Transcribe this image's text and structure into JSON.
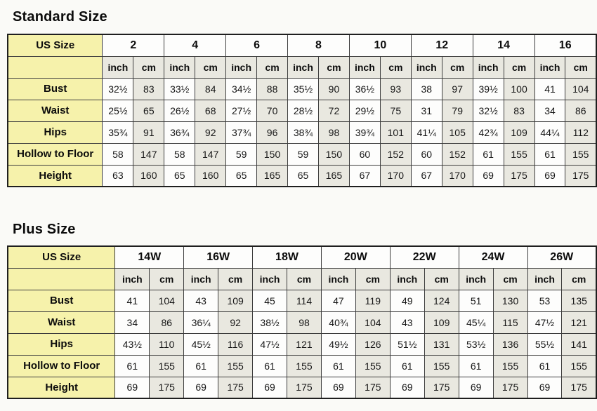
{
  "page": {
    "background": "#fafaf7"
  },
  "colors": {
    "label_column_yellow": "#f6f2ab",
    "unit_and_cm_cell_gray": "#e9e8e0",
    "white_cell": "#fdfdfc",
    "border": "#3d3d3d",
    "border_outer": "#1f1f1f",
    "text": "#111111"
  },
  "tables": [
    {
      "name": "standard-size",
      "title": "Standard Size",
      "corner_label": "US Size",
      "sizes": [
        "2",
        "4",
        "6",
        "8",
        "10",
        "12",
        "14",
        "16"
      ],
      "unit_labels": [
        "inch",
        "cm"
      ],
      "rows": [
        {
          "label": "Bust",
          "values": [
            "32½",
            "83",
            "33½",
            "84",
            "34½",
            "88",
            "35½",
            "90",
            "36½",
            "93",
            "38",
            "97",
            "39½",
            "100",
            "41",
            "104"
          ]
        },
        {
          "label": "Waist",
          "values": [
            "25½",
            "65",
            "26½",
            "68",
            "27½",
            "70",
            "28½",
            "72",
            "29½",
            "75",
            "31",
            "79",
            "32½",
            "83",
            "34",
            "86"
          ]
        },
        {
          "label": "Hips",
          "values": [
            "35¾",
            "91",
            "36¾",
            "92",
            "37¾",
            "96",
            "38¾",
            "98",
            "39¾",
            "101",
            "41¼",
            "105",
            "42¾",
            "109",
            "44¼",
            "112"
          ]
        },
        {
          "label": "Hollow to Floor",
          "values": [
            "58",
            "147",
            "58",
            "147",
            "59",
            "150",
            "59",
            "150",
            "60",
            "152",
            "60",
            "152",
            "61",
            "155",
            "61",
            "155"
          ]
        },
        {
          "label": "Height",
          "values": [
            "63",
            "160",
            "65",
            "160",
            "65",
            "165",
            "65",
            "165",
            "67",
            "170",
            "67",
            "170",
            "69",
            "175",
            "69",
            "175"
          ]
        }
      ]
    },
    {
      "name": "plus-size",
      "title": "Plus Size",
      "corner_label": "US Size",
      "sizes": [
        "14W",
        "16W",
        "18W",
        "20W",
        "22W",
        "24W",
        "26W"
      ],
      "unit_labels": [
        "inch",
        "cm"
      ],
      "rows": [
        {
          "label": "Bust",
          "values": [
            "41",
            "104",
            "43",
            "109",
            "45",
            "114",
            "47",
            "119",
            "49",
            "124",
            "51",
            "130",
            "53",
            "135"
          ]
        },
        {
          "label": "Waist",
          "values": [
            "34",
            "86",
            "36¼",
            "92",
            "38½",
            "98",
            "40¾",
            "104",
            "43",
            "109",
            "45¼",
            "115",
            "47½",
            "121"
          ]
        },
        {
          "label": "Hips",
          "values": [
            "43½",
            "110",
            "45½",
            "116",
            "47½",
            "121",
            "49½",
            "126",
            "51½",
            "131",
            "53½",
            "136",
            "55½",
            "141"
          ]
        },
        {
          "label": "Hollow to Floor",
          "values": [
            "61",
            "155",
            "61",
            "155",
            "61",
            "155",
            "61",
            "155",
            "61",
            "155",
            "61",
            "155",
            "61",
            "155"
          ]
        },
        {
          "label": "Height",
          "values": [
            "69",
            "175",
            "69",
            "175",
            "69",
            "175",
            "69",
            "175",
            "69",
            "175",
            "69",
            "175",
            "69",
            "175"
          ]
        }
      ]
    }
  ]
}
